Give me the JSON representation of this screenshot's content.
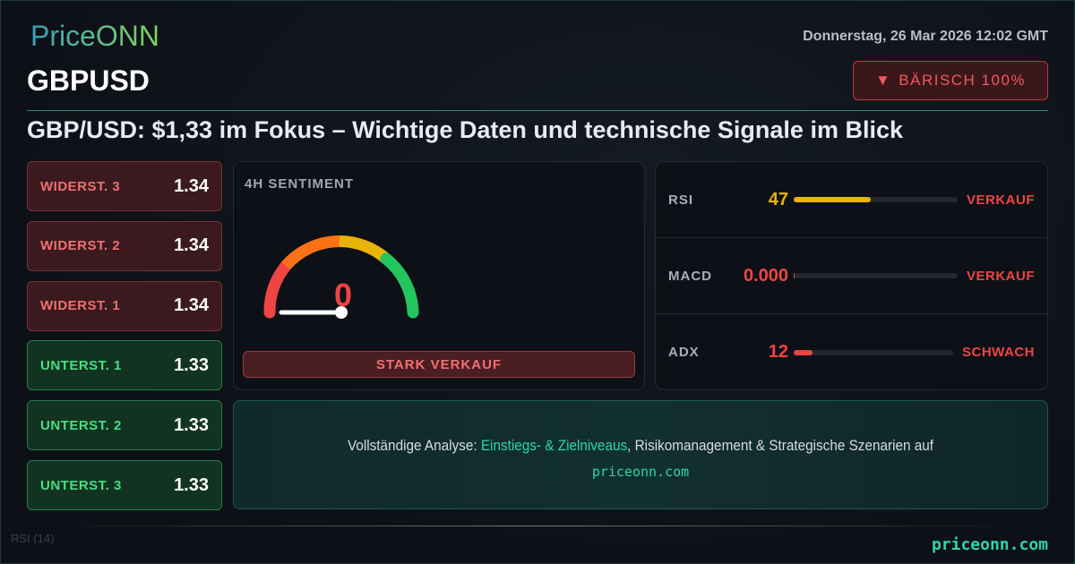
{
  "brand": {
    "logo": "PriceONN",
    "footer_url": "priceonn.com"
  },
  "header": {
    "date": "Donnerstag, 26 Mar 2026 12:02 GMT",
    "symbol": "GBPUSD",
    "badge": {
      "icon": "triangle-down-icon",
      "label": "BÄRISCH 100%"
    },
    "headline": "GBP/USD: $1,33 im Fokus – Wichtige Daten und technische Signale im Blick"
  },
  "levels": [
    {
      "name": "WIDERST. 3",
      "value": "1.34",
      "type": "resistance"
    },
    {
      "name": "WIDERST. 2",
      "value": "1.34",
      "type": "resistance"
    },
    {
      "name": "WIDERST. 1",
      "value": "1.34",
      "type": "resistance"
    },
    {
      "name": "UNTERST. 1",
      "value": "1.33",
      "type": "support"
    },
    {
      "name": "UNTERST. 2",
      "value": "1.33",
      "type": "support"
    },
    {
      "name": "UNTERST. 3",
      "value": "1.33",
      "type": "support"
    }
  ],
  "sentiment": {
    "title": "4H SENTIMENT",
    "value": "0",
    "gauge_level": 0,
    "verdict": "STARK VERKAUF"
  },
  "indicators": [
    {
      "name": "RSI",
      "value": "47",
      "fill_percent": 47,
      "color": "#eab308",
      "signal": "VERKAUF"
    },
    {
      "name": "MACD",
      "value": "0.000",
      "fill_percent": 0.5,
      "color": "#ef4444",
      "signal": "VERKAUF"
    },
    {
      "name": "ADX",
      "value": "12",
      "fill_percent": 12,
      "color": "#ef4444",
      "signal": "SCHWACH"
    }
  ],
  "cta": {
    "prefix": "Vollständige Analyse: ",
    "highlight": "Einstiegs- & Zielniveaus",
    "suffix": ", Risikomanagement & Strategische Szenarien auf",
    "url": "priceonn.com"
  },
  "background_chart": {
    "rsi_label": "RSI (14)"
  },
  "colors": {
    "accent": "#2dd4b0",
    "bearish": "#ef4444",
    "bullish": "#4ade80"
  }
}
